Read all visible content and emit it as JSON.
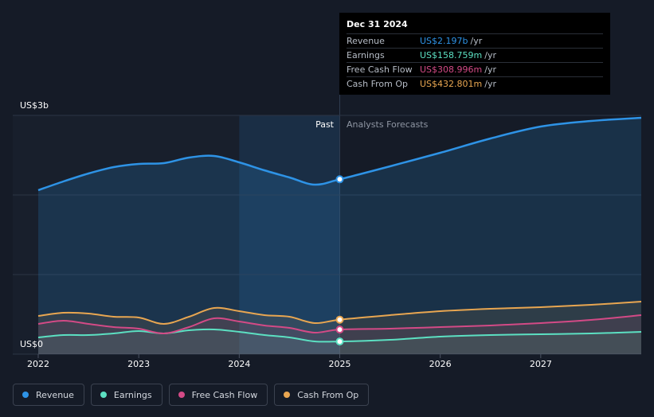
{
  "chart_data": {
    "type": "area",
    "y_unit_label": "US$3b",
    "y_zero_label": "US$0",
    "ylim": [
      0,
      3.0
    ],
    "xlim": [
      2022.0,
      2028.0
    ],
    "x_ticks": [
      2022,
      2023,
      2024,
      2025,
      2026,
      2027
    ],
    "x_tick_labels": [
      "2022",
      "2023",
      "2024",
      "2025",
      "2026",
      "2027"
    ],
    "past_label": "Past",
    "forecast_label": "Analysts Forecasts",
    "divider_x": 2025.0,
    "highlight_range": [
      2024.0,
      2025.0
    ],
    "series": [
      {
        "name": "Revenue",
        "color": "#2e93e6",
        "fill": true,
        "x": [
          2022.0,
          2022.25,
          2022.5,
          2022.75,
          2023.0,
          2023.25,
          2023.5,
          2023.75,
          2024.0,
          2024.25,
          2024.5,
          2024.75,
          2025.0,
          2025.5,
          2026.0,
          2026.5,
          2027.0,
          2027.5,
          2028.0
        ],
        "values": [
          2.06,
          2.17,
          2.27,
          2.35,
          2.39,
          2.4,
          2.47,
          2.49,
          2.41,
          2.31,
          2.22,
          2.13,
          2.197,
          2.36,
          2.53,
          2.71,
          2.86,
          2.93,
          2.97
        ]
      },
      {
        "name": "Earnings",
        "color": "#5ce0c2",
        "fill": false,
        "x": [
          2022.0,
          2022.25,
          2022.5,
          2022.75,
          2023.0,
          2023.25,
          2023.5,
          2023.75,
          2024.0,
          2024.25,
          2024.5,
          2024.75,
          2025.0,
          2025.5,
          2026.0,
          2026.5,
          2027.0,
          2027.5,
          2028.0
        ],
        "values": [
          0.21,
          0.24,
          0.24,
          0.26,
          0.29,
          0.26,
          0.3,
          0.31,
          0.28,
          0.24,
          0.21,
          0.16,
          0.159,
          0.18,
          0.22,
          0.24,
          0.25,
          0.26,
          0.28
        ]
      },
      {
        "name": "Free Cash Flow",
        "color": "#d34a86",
        "fill": false,
        "x": [
          2022.0,
          2022.25,
          2022.5,
          2022.75,
          2023.0,
          2023.25,
          2023.5,
          2023.75,
          2024.0,
          2024.25,
          2024.5,
          2024.75,
          2025.0,
          2025.5,
          2026.0,
          2026.5,
          2027.0,
          2027.5,
          2028.0
        ],
        "values": [
          0.38,
          0.42,
          0.38,
          0.34,
          0.32,
          0.26,
          0.34,
          0.45,
          0.41,
          0.36,
          0.33,
          0.27,
          0.309,
          0.32,
          0.34,
          0.36,
          0.39,
          0.43,
          0.49
        ]
      },
      {
        "name": "Cash From Op",
        "color": "#e8a651",
        "fill": false,
        "x": [
          2022.0,
          2022.25,
          2022.5,
          2022.75,
          2023.0,
          2023.25,
          2023.5,
          2023.75,
          2024.0,
          2024.25,
          2024.5,
          2024.75,
          2025.0,
          2025.5,
          2026.0,
          2026.5,
          2027.0,
          2027.5,
          2028.0
        ],
        "values": [
          0.48,
          0.52,
          0.51,
          0.47,
          0.46,
          0.38,
          0.47,
          0.58,
          0.54,
          0.49,
          0.47,
          0.39,
          0.433,
          0.49,
          0.54,
          0.57,
          0.59,
          0.62,
          0.66
        ]
      }
    ],
    "tooltip": {
      "date": "Dec 31 2024",
      "x": 2025.0,
      "rows": [
        {
          "label": "Revenue",
          "value": "US$2.197b",
          "unit": "/yr",
          "color": "#2e93e6"
        },
        {
          "label": "Earnings",
          "value": "US$158.759m",
          "unit": "/yr",
          "color": "#5ce0c2"
        },
        {
          "label": "Free Cash Flow",
          "value": "US$308.996m",
          "unit": "/yr",
          "color": "#d34a86"
        },
        {
          "label": "Cash From Op",
          "value": "US$432.801m",
          "unit": "/yr",
          "color": "#e8a651"
        }
      ]
    }
  },
  "legend": [
    {
      "label": "Revenue",
      "color": "#2e93e6"
    },
    {
      "label": "Earnings",
      "color": "#5ce0c2"
    },
    {
      "label": "Free Cash Flow",
      "color": "#d34a86"
    },
    {
      "label": "Cash From Op",
      "color": "#e8a651"
    }
  ]
}
